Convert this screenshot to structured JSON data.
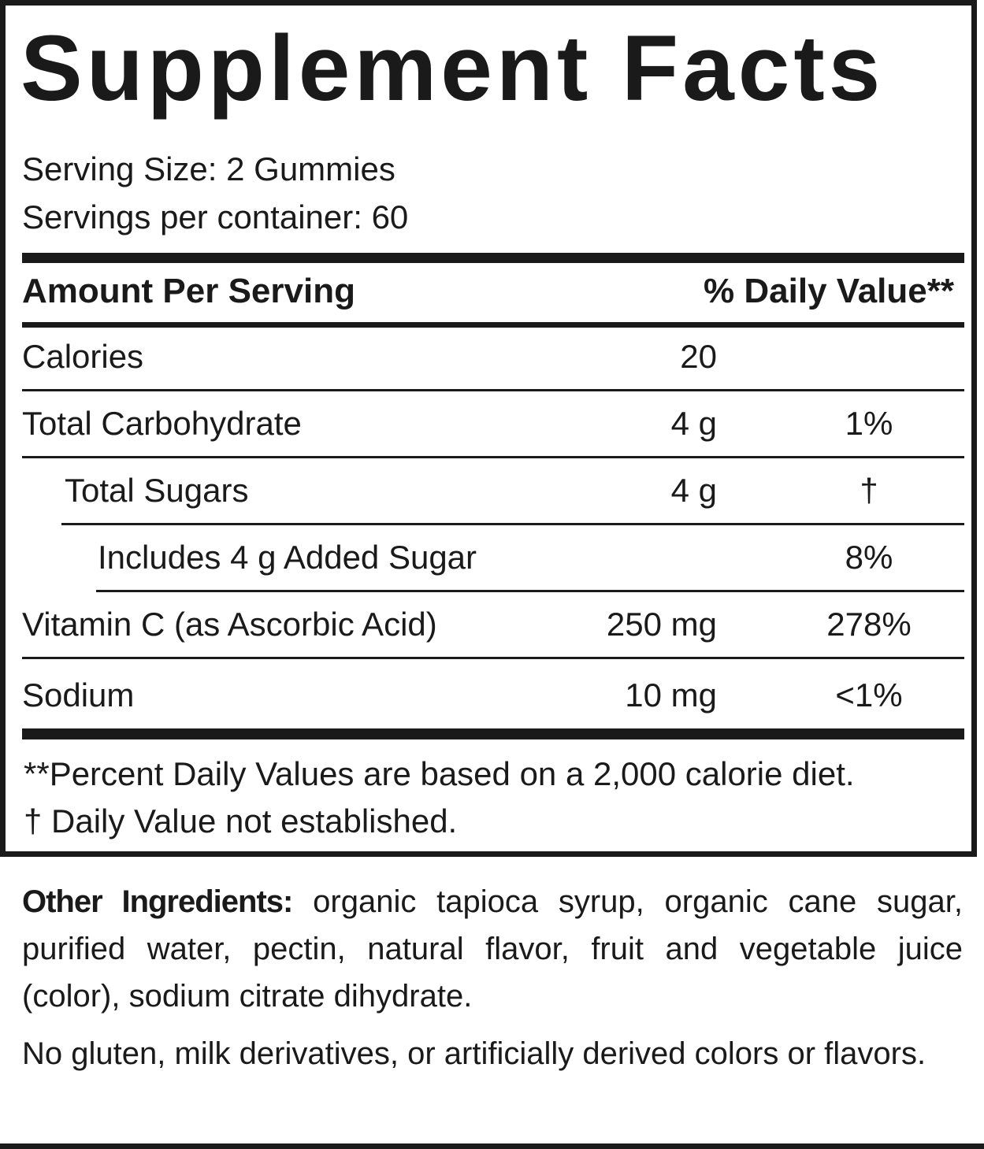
{
  "header": {
    "title": "Supplement Facts",
    "serving_size": "Serving Size: 2 Gummies",
    "servings_per_container": "Servings per container: 60"
  },
  "table": {
    "columns": [
      "Amount Per Serving",
      "% Daily Value**"
    ],
    "rows": [
      {
        "name": "Calories",
        "amount": "20"
      },
      {
        "name": "Total Carbohydrate",
        "amount": "4 g",
        "daily_value": "1%"
      },
      {
        "name": "Total Sugars",
        "amount": "4 g",
        "daily_value": "†"
      },
      {
        "name": "Includes 4 g Added Sugar",
        "daily_value": "8%"
      },
      {
        "name": "Vitamin C (as Ascorbic Acid)",
        "amount": "250 mg",
        "daily_value": "278%"
      },
      {
        "name": "Sodium",
        "amount": "10 mg",
        "daily_value": "<1%"
      }
    ]
  },
  "footnotes": [
    "**Percent Daily Values are based on a 2,000 calorie diet.",
    "†  Daily Value not established."
  ],
  "ingredients": {
    "label": "Other Ingredients:",
    "text": "organic tapioca syrup, organic cane sugar, purified water, pectin, natural flavor, fruit and vegetable juice (color), sodium citrate dihydrate."
  },
  "note": "No gluten, milk derivatives, or artificially derived colors or flavors."
}
